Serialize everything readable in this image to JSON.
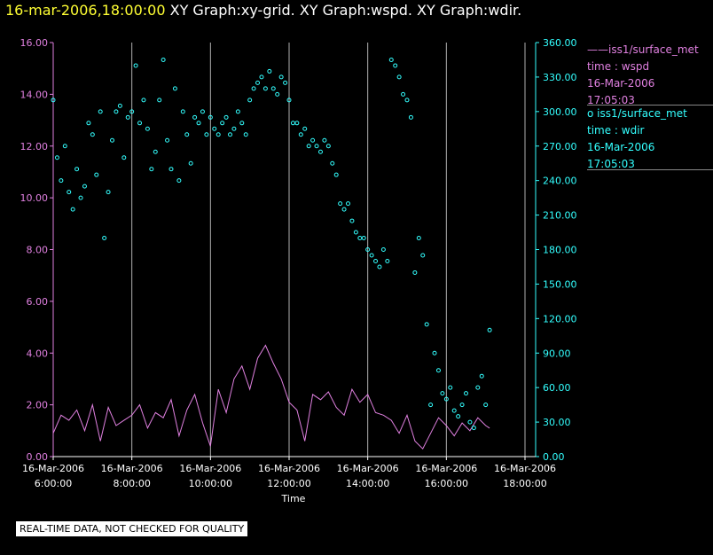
{
  "header": {
    "timestamp": "16-mar-2006,18:00:00",
    "graph_titles": "XY Graph:xy-grid.  XY Graph:wspd.  XY Graph:wdir."
  },
  "legend": [
    {
      "prefix": "——",
      "source": "iss1/surface_met",
      "field": "time : wspd",
      "date": "16-Mar-2006",
      "time": "17:05:03"
    },
    {
      "prefix": "o",
      "source": "iss1/surface_met",
      "field": "time : wdir",
      "date": "16-Mar-2006",
      "time": "17:05:03"
    }
  ],
  "note": "REAL-TIME DATA, NOT CHECKED FOR QUALITY",
  "colors": {
    "wspd": "#e080e0",
    "wdir": "#33ffff",
    "grid": "#b0b0b0",
    "axis": "#ffffff"
  },
  "chart_data": {
    "type": "scatter",
    "xlabel": "Time",
    "x_range_hours": [
      6,
      18.4
    ],
    "x_ticks": [
      {
        "hour": 6,
        "date": "16-Mar-2006",
        "time": "6:00:00"
      },
      {
        "hour": 8,
        "date": "16-Mar-2006",
        "time": "8:00:00"
      },
      {
        "hour": 10,
        "date": "16-Mar-2006",
        "time": "10:00:00"
      },
      {
        "hour": 12,
        "date": "16-Mar-2006",
        "time": "12:00:00"
      },
      {
        "hour": 14,
        "date": "16-Mar-2006",
        "time": "14:00:00"
      },
      {
        "hour": 16,
        "date": "16-Mar-2006",
        "time": "16:00:00"
      },
      {
        "hour": 18,
        "date": "16-Mar-2006",
        "time": "18:00:00"
      }
    ],
    "grid_hours": [
      8,
      10,
      12,
      14,
      16,
      18
    ],
    "left_axis": {
      "name": "wspd",
      "ylim": [
        0,
        16
      ],
      "ticks": [
        0,
        2,
        4,
        6,
        8,
        10,
        12,
        14,
        16
      ],
      "tick_labels": [
        "0.00",
        "2.00",
        "4.00",
        "6.00",
        "8.00",
        "10.00",
        "12.00",
        "14.00",
        "16.00"
      ]
    },
    "right_axis": {
      "name": "wdir",
      "ylim": [
        0,
        360
      ],
      "ticks": [
        0,
        30,
        60,
        90,
        120,
        150,
        180,
        210,
        240,
        270,
        300,
        330,
        360
      ],
      "tick_labels": [
        "0.00",
        "30.00",
        "60.00",
        "90.00",
        "120.00",
        "150.00",
        "180.00",
        "210.00",
        "240.00",
        "270.00",
        "300.00",
        "330.00",
        "360.00"
      ]
    },
    "series": [
      {
        "name": "wspd",
        "style": "line",
        "axis": "left",
        "x": [
          6.0,
          6.2,
          6.4,
          6.6,
          6.8,
          7.0,
          7.2,
          7.4,
          7.6,
          7.8,
          8.0,
          8.2,
          8.4,
          8.6,
          8.8,
          9.0,
          9.2,
          9.4,
          9.6,
          9.8,
          10.0,
          10.2,
          10.4,
          10.6,
          10.8,
          11.0,
          11.2,
          11.4,
          11.6,
          11.8,
          12.0,
          12.2,
          12.4,
          12.6,
          12.8,
          13.0,
          13.2,
          13.4,
          13.6,
          13.8,
          14.0,
          14.2,
          14.4,
          14.6,
          14.8,
          15.0,
          15.2,
          15.4,
          15.6,
          15.8,
          16.0,
          16.2,
          16.4,
          16.6,
          16.8,
          17.0,
          17.1
        ],
        "values": [
          0.9,
          1.6,
          1.4,
          1.8,
          1.0,
          2.0,
          0.6,
          1.9,
          1.2,
          1.4,
          1.6,
          2.0,
          1.1,
          1.7,
          1.5,
          2.2,
          0.8,
          1.8,
          2.4,
          1.3,
          0.4,
          2.6,
          1.7,
          3.0,
          3.5,
          2.6,
          3.8,
          4.3,
          3.6,
          3.0,
          2.1,
          1.8,
          0.6,
          2.4,
          2.2,
          2.5,
          1.9,
          1.6,
          2.6,
          2.1,
          2.4,
          1.7,
          1.6,
          1.4,
          0.9,
          1.6,
          0.6,
          0.3,
          0.9,
          1.5,
          1.2,
          0.8,
          1.3,
          1.0,
          1.5,
          1.2,
          1.1
        ]
      },
      {
        "name": "wdir",
        "style": "scatter",
        "axis": "right",
        "x": [
          6.0,
          6.1,
          6.2,
          6.3,
          6.4,
          6.5,
          6.6,
          6.7,
          6.8,
          6.9,
          7.0,
          7.1,
          7.2,
          7.3,
          7.4,
          7.5,
          7.6,
          7.7,
          7.8,
          7.9,
          8.0,
          8.1,
          8.2,
          8.3,
          8.4,
          8.5,
          8.6,
          8.7,
          8.8,
          8.9,
          9.0,
          9.1,
          9.2,
          9.3,
          9.4,
          9.5,
          9.6,
          9.7,
          9.8,
          9.9,
          10.0,
          10.1,
          10.2,
          10.3,
          10.4,
          10.5,
          10.6,
          10.7,
          10.8,
          10.9,
          11.0,
          11.1,
          11.2,
          11.3,
          11.4,
          11.5,
          11.6,
          11.7,
          11.8,
          11.9,
          12.0,
          12.1,
          12.2,
          12.3,
          12.4,
          12.5,
          12.6,
          12.7,
          12.8,
          12.9,
          13.0,
          13.1,
          13.2,
          13.3,
          13.4,
          13.5,
          13.6,
          13.7,
          13.8,
          13.9,
          14.0,
          14.1,
          14.2,
          14.3,
          14.4,
          14.5,
          14.6,
          14.7,
          14.8,
          14.9,
          15.0,
          15.1,
          15.2,
          15.3,
          15.4,
          15.5,
          15.6,
          15.7,
          15.8,
          15.9,
          16.0,
          16.1,
          16.2,
          16.3,
          16.4,
          16.5,
          16.6,
          16.7,
          16.8,
          16.9,
          17.0,
          17.1
        ],
        "values": [
          310,
          260,
          240,
          270,
          230,
          215,
          250,
          225,
          235,
          290,
          280,
          245,
          300,
          190,
          230,
          275,
          300,
          305,
          260,
          295,
          300,
          340,
          290,
          310,
          285,
          250,
          265,
          310,
          345,
          275,
          250,
          320,
          240,
          300,
          280,
          255,
          295,
          290,
          300,
          280,
          295,
          285,
          280,
          290,
          295,
          280,
          285,
          300,
          290,
          280,
          310,
          320,
          325,
          330,
          320,
          335,
          320,
          315,
          330,
          325,
          310,
          290,
          290,
          280,
          285,
          270,
          275,
          270,
          265,
          275,
          270,
          255,
          245,
          220,
          215,
          220,
          205,
          195,
          190,
          190,
          180,
          175,
          170,
          165,
          180,
          170,
          345,
          340,
          330,
          315,
          310,
          295,
          160,
          190,
          175,
          115,
          45,
          90,
          75,
          55,
          50,
          60,
          40,
          35,
          45,
          55,
          30,
          25,
          60,
          70,
          45,
          110
        ]
      }
    ]
  }
}
